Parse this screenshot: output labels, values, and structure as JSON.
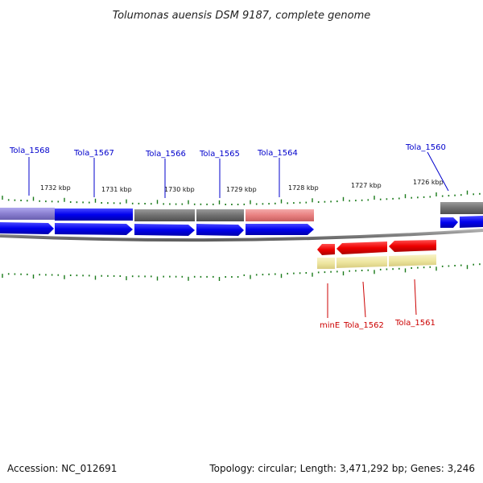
{
  "title": "Tolumonas auensis DSM 9187, complete genome",
  "footer": {
    "accession": "Accession: NC_012691",
    "topology": "Topology: circular; Length: 3,471,292 bp; Genes: 3,246"
  },
  "colors": {
    "forward_label": "#0000cc",
    "reverse_label": "#cc0000",
    "cds_forward": "#0000ee",
    "cds_reverse": "#ee0000",
    "tick": "#1a7a1a",
    "backbone": "#808080",
    "feature_dark": "#707070",
    "feature_purple": "#8a7fd0",
    "feature_pink": "#e88080",
    "feature_yellow": "#eee6a0"
  },
  "kbp_labels": [
    "1732 kbp",
    "1731 kbp",
    "1730 kbp",
    "1729 kbp",
    "1728 kbp",
    "1727 kbp",
    "1726 kbp"
  ],
  "forward_genes": [
    {
      "name": "Tola_1568"
    },
    {
      "name": "Tola_1567"
    },
    {
      "name": "Tola_1566"
    },
    {
      "name": "Tola_1565"
    },
    {
      "name": "Tola_1564"
    },
    {
      "name": "Tola_1560"
    }
  ],
  "reverse_genes": [
    {
      "name": "minE"
    },
    {
      "name": "Tola_1562"
    },
    {
      "name": "Tola_1561"
    }
  ]
}
